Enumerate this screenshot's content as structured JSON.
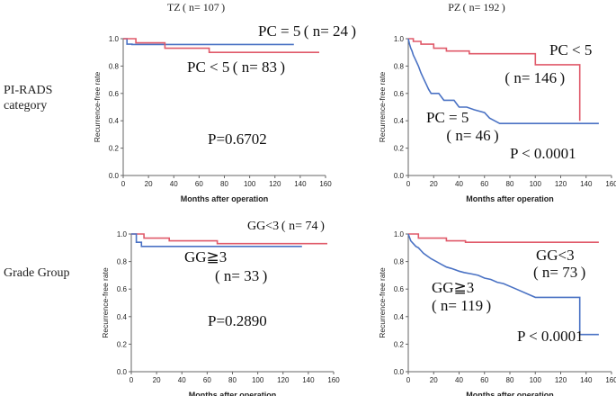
{
  "column_titles": [
    {
      "label": "TZ",
      "n": " ( n= 107 )"
    },
    {
      "label": "PZ",
      "n": " ( n= 192 )"
    }
  ],
  "row_labels": [
    {
      "line1": "PI-RADS",
      "line2": "category"
    },
    {
      "line1": "Grade Group",
      "line2": ""
    }
  ],
  "chart_data": [
    {
      "type": "line",
      "panel": "TZ by PI-RADS category",
      "ylabel": "Recurrence-free  rate",
      "xlabel": "Months after operation",
      "xlim": [
        0,
        160
      ],
      "ylim": [
        0.0,
        1.0
      ],
      "xticks": [
        "0",
        "20",
        "40",
        "60",
        "80",
        "100",
        "120",
        "140",
        "160"
      ],
      "yticks": [
        "0.0",
        "0.2",
        "0.4",
        "0.6",
        "0.8",
        "1.0"
      ],
      "series": [
        {
          "name": "PC = 5",
          "color": "#4a72c4",
          "x": [
            0,
            3,
            3,
            7,
            7,
            135
          ],
          "y": [
            1.0,
            1.0,
            0.96,
            0.96,
            0.958,
            0.958
          ]
        },
        {
          "name": "PC < 5",
          "color": "#e05a6a",
          "x": [
            0,
            10,
            10,
            33,
            33,
            68,
            68,
            155
          ],
          "y": [
            1.0,
            1.0,
            0.97,
            0.97,
            0.93,
            0.93,
            0.9,
            0.9
          ]
        }
      ],
      "annotations": [
        {
          "key": "pc5",
          "text": "PC = 5 ( n= 24 )"
        },
        {
          "key": "pclt5",
          "text": "PC < 5 ( n= 83 )"
        },
        {
          "key": "p",
          "text": "P=0.6702"
        }
      ]
    },
    {
      "type": "line",
      "panel": "PZ by PI-RADS category",
      "ylabel": "Recurrence-free  rate",
      "xlabel": "Months after operation",
      "xlim": [
        0,
        160
      ],
      "ylim": [
        0.0,
        1.0
      ],
      "xticks": [
        "0",
        "20",
        "40",
        "60",
        "80",
        "100",
        "120",
        "140",
        "160"
      ],
      "yticks": [
        "0.0",
        "0.2",
        "0.4",
        "0.6",
        "0.8",
        "1.0"
      ],
      "series": [
        {
          "name": "PC < 5",
          "color": "#e05a6a",
          "x": [
            0,
            4,
            4,
            10,
            10,
            20,
            20,
            30,
            30,
            48,
            48,
            100,
            100,
            135,
            135
          ],
          "y": [
            1.0,
            1.0,
            0.98,
            0.98,
            0.96,
            0.96,
            0.93,
            0.93,
            0.91,
            0.91,
            0.89,
            0.89,
            0.81,
            0.81,
            0.4
          ]
        },
        {
          "name": "PC = 5",
          "color": "#4a72c4",
          "x": [
            0,
            1,
            2,
            3,
            4,
            5,
            6,
            8,
            10,
            12,
            14,
            16,
            18,
            24,
            28,
            30,
            36,
            40,
            46,
            52,
            60,
            64,
            68,
            72,
            100,
            135,
            150
          ],
          "y": [
            1.0,
            0.96,
            0.93,
            0.91,
            0.88,
            0.86,
            0.84,
            0.8,
            0.75,
            0.71,
            0.67,
            0.63,
            0.6,
            0.6,
            0.55,
            0.55,
            0.55,
            0.5,
            0.5,
            0.48,
            0.46,
            0.42,
            0.4,
            0.38,
            0.38,
            0.38,
            0.38
          ]
        }
      ],
      "annotations": [
        {
          "key": "pclt5",
          "text": "PC < 5"
        },
        {
          "key": "pclt5n",
          "text": " ( n= 146 )"
        },
        {
          "key": "pc5",
          "text": "PC = 5"
        },
        {
          "key": "pc5n",
          "text": " ( n= 46 )"
        },
        {
          "key": "p",
          "text": "P < 0.0001"
        }
      ]
    },
    {
      "type": "line",
      "panel": "TZ by Grade Group",
      "ylabel": "Recurrence-free  rate",
      "xlabel": "Months after operation",
      "xlim": [
        0,
        160
      ],
      "ylim": [
        0.0,
        1.0
      ],
      "xticks": [
        "0",
        "20",
        "40",
        "60",
        "80",
        "100",
        "120",
        "140",
        "160"
      ],
      "yticks": [
        "0.0",
        "0.2",
        "0.4",
        "0.6",
        "0.8",
        "1.0"
      ],
      "series": [
        {
          "name": "GG<3",
          "color": "#e05a6a",
          "x": [
            0,
            10,
            10,
            30,
            30,
            68,
            68,
            155
          ],
          "y": [
            1.0,
            1.0,
            0.97,
            0.97,
            0.95,
            0.95,
            0.93,
            0.93
          ]
        },
        {
          "name": "GG≧3",
          "color": "#4a72c4",
          "x": [
            0,
            4,
            4,
            8,
            8,
            135
          ],
          "y": [
            1.0,
            1.0,
            0.94,
            0.94,
            0.91,
            0.91
          ]
        }
      ],
      "annotations": [
        {
          "key": "glt3",
          "text": "GG<3 ( n= 74 )"
        },
        {
          "key": "gge3",
          "text": "GG≧3"
        },
        {
          "key": "gge3n",
          "text": "( n= 33 )"
        },
        {
          "key": "p",
          "text": "P=0.2890"
        }
      ]
    },
    {
      "type": "line",
      "panel": "PZ by Grade Group",
      "ylabel": "Recurrence-free  rate",
      "xlabel": "Months after operation",
      "xlim": [
        0,
        160
      ],
      "ylim": [
        0.0,
        1.0
      ],
      "xticks": [
        "0",
        "20",
        "40",
        "60",
        "80",
        "100",
        "120",
        "140",
        "160"
      ],
      "yticks": [
        "0.0",
        "0.2",
        "0.4",
        "0.6",
        "0.8",
        "1.0"
      ],
      "series": [
        {
          "name": "GG<3",
          "color": "#e05a6a",
          "x": [
            0,
            8,
            8,
            30,
            30,
            45,
            45,
            150
          ],
          "y": [
            1.0,
            1.0,
            0.97,
            0.97,
            0.95,
            0.95,
            0.94,
            0.94
          ]
        },
        {
          "name": "GG≧3",
          "color": "#4a72c4",
          "x": [
            0,
            2,
            4,
            6,
            8,
            10,
            12,
            15,
            18,
            22,
            26,
            30,
            34,
            40,
            44,
            50,
            55,
            60,
            65,
            70,
            75,
            85,
            100,
            135,
            135,
            150
          ],
          "y": [
            1.0,
            0.95,
            0.93,
            0.91,
            0.9,
            0.88,
            0.86,
            0.84,
            0.82,
            0.8,
            0.78,
            0.76,
            0.75,
            0.73,
            0.72,
            0.71,
            0.7,
            0.68,
            0.67,
            0.65,
            0.64,
            0.6,
            0.54,
            0.54,
            0.27,
            0.27
          ]
        }
      ],
      "annotations": [
        {
          "key": "glt3",
          "text": "GG<3"
        },
        {
          "key": "glt3n",
          "text": "( n= 73 )"
        },
        {
          "key": "gge3",
          "text": "GG≧3"
        },
        {
          "key": "gge3n",
          "text": "( n= 119 )"
        },
        {
          "key": "p",
          "text": "P < 0.0001"
        }
      ]
    }
  ]
}
